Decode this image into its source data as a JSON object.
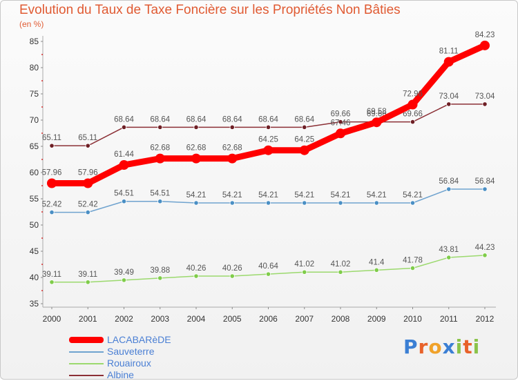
{
  "title": "Evolution du Taux de Taxe Foncière sur les Propriétés Non Bâties",
  "unit_label": "(en %)",
  "logo_text": "Proxiti",
  "chart_data": {
    "type": "line",
    "x": [
      "2000",
      "2001",
      "2002",
      "2003",
      "2004",
      "2005",
      "2006",
      "2007",
      "2008",
      "2009",
      "2010",
      "2011",
      "2012"
    ],
    "ylim": [
      35,
      85
    ],
    "yticks": [
      35,
      40,
      45,
      50,
      55,
      60,
      65,
      70,
      75,
      80,
      85
    ],
    "grid": false,
    "legend_position": "bottom-left",
    "series": [
      {
        "name": "LACABARèDE",
        "color": "#ff0000",
        "marker": "#ff0000",
        "values": [
          57.96,
          57.96,
          61.44,
          62.68,
          62.68,
          62.68,
          64.25,
          64.25,
          67.46,
          69.58,
          72.96,
          81.11,
          84.23
        ],
        "labels": [
          "57.96",
          "57.96",
          "61.44",
          "62.68",
          "62.68",
          "62.68",
          "64.25",
          "64.25",
          "67.46",
          "69.58",
          "72.96",
          "81.11",
          "84.23"
        ]
      },
      {
        "name": "Sauveterre",
        "color": "#6fa3cf",
        "marker": "#4a8fc4",
        "values": [
          52.42,
          52.42,
          54.51,
          54.51,
          54.21,
          54.21,
          54.21,
          54.21,
          54.21,
          54.21,
          54.21,
          56.84,
          56.84
        ],
        "labels": [
          "52.42",
          "52.42",
          "54.51",
          "54.51",
          "54.21",
          "54.21",
          "54.21",
          "54.21",
          "54.21",
          "54.21",
          "54.21",
          "56.84",
          "56.84"
        ]
      },
      {
        "name": "Rouairoux",
        "color": "#9bd96d",
        "marker": "#7fcc4a",
        "values": [
          39.11,
          39.11,
          39.49,
          39.88,
          40.26,
          40.26,
          40.64,
          41.02,
          41.02,
          41.4,
          41.78,
          43.81,
          44.23
        ],
        "labels": [
          "39.11",
          "39.11",
          "39.49",
          "39.88",
          "40.26",
          "40.26",
          "40.64",
          "41.02",
          "41.02",
          "41.4",
          "41.78",
          "43.81",
          "44.23"
        ]
      },
      {
        "name": "Albine",
        "color": "#8b2f35",
        "marker": "#6e1f25",
        "values": [
          65.11,
          65.11,
          68.64,
          68.64,
          68.64,
          68.64,
          68.64,
          68.64,
          69.66,
          69.66,
          69.66,
          73.04,
          73.04
        ],
        "labels": [
          "65.11",
          "65.11",
          "68.64",
          "68.64",
          "68.64",
          "68.64",
          "68.64",
          "68.64",
          "69.66",
          "69.66",
          "69.66",
          "73.04",
          "73.04"
        ]
      }
    ]
  }
}
